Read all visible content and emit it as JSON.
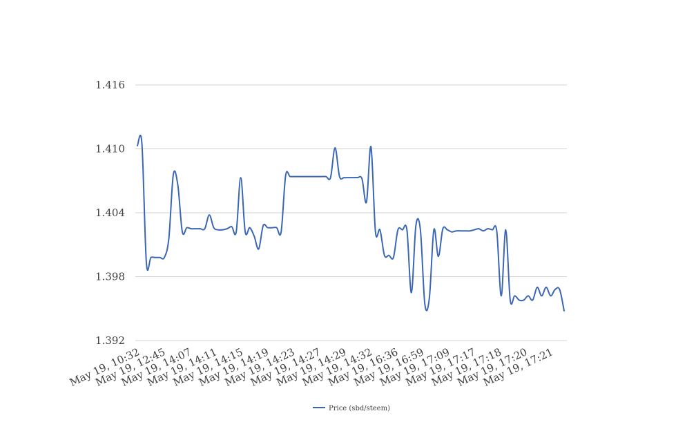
{
  "chart_data": {
    "type": "line",
    "title": "",
    "xlabel": "",
    "ylabel": "",
    "ylim": [
      1.392,
      1.416
    ],
    "yticks": [
      "1.392",
      "1.398",
      "1.404",
      "1.410",
      "1.416"
    ],
    "grid": true,
    "legend_position": "bottom",
    "x_tick_labels": [
      "May 19, 10:32",
      "May 19, 12:45",
      "May 19, 14:07",
      "May 19, 14:11",
      "May 19, 14:15",
      "May 19, 14:19",
      "May 19, 14:23",
      "May 19, 14:27",
      "May 19, 14:29",
      "May 19, 14:32",
      "May 19, 16:36",
      "May 19, 16:59",
      "May 19, 17:09",
      "May 19, 17:17",
      "May 19, 17:18",
      "May 19, 17:20",
      "May 19, 17:21"
    ],
    "series": [
      {
        "name": "Price (sbd/steem)",
        "color": "#3a66b4",
        "values": [
          1.4103,
          1.4105,
          1.3993,
          1.3998,
          1.3998,
          1.3998,
          1.3998,
          1.4016,
          1.4076,
          1.4066,
          1.4022,
          1.4026,
          1.4025,
          1.4025,
          1.4025,
          1.4025,
          1.4038,
          1.4026,
          1.4024,
          1.4024,
          1.4025,
          1.4027,
          1.4022,
          1.4073,
          1.4022,
          1.4026,
          1.4018,
          1.4006,
          1.4028,
          1.4026,
          1.4026,
          1.4026,
          1.4022,
          1.4075,
          1.4074,
          1.4074,
          1.4074,
          1.4074,
          1.4074,
          1.4074,
          1.4074,
          1.4074,
          1.4074,
          1.4073,
          1.4101,
          1.4074,
          1.4073,
          1.4073,
          1.4073,
          1.4073,
          1.4072,
          1.405,
          1.4102,
          1.4022,
          1.4024,
          1.4,
          1.4,
          1.3998,
          1.4024,
          1.4024,
          1.4024,
          1.3965,
          1.4028,
          1.4024,
          1.3954,
          1.396,
          1.4024,
          1.3999,
          1.4025,
          1.4024,
          1.4022,
          1.4023,
          1.4023,
          1.4023,
          1.4023,
          1.4024,
          1.4025,
          1.4023,
          1.4025,
          1.4024,
          1.4023,
          1.3962,
          1.4024,
          1.3958,
          1.3962,
          1.3958,
          1.3958,
          1.3962,
          1.3958,
          1.397,
          1.3962,
          1.397,
          1.3962,
          1.3968,
          1.3968,
          1.3948
        ]
      }
    ]
  }
}
